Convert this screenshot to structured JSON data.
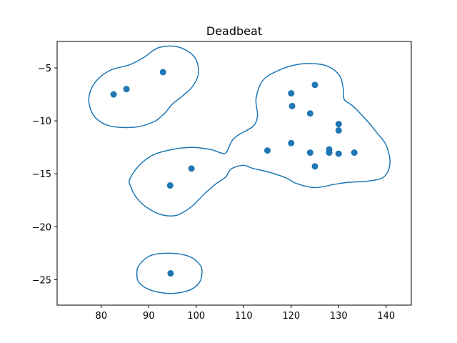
{
  "chart_data": {
    "type": "scatter",
    "title": "Deadbeat",
    "xlabel": "",
    "ylabel": "",
    "xlim": [
      70.7,
      145.3
    ],
    "ylim": [
      -27.4,
      -2.5
    ],
    "xticks": [
      80,
      90,
      100,
      110,
      120,
      130,
      140
    ],
    "yticks": [
      -5,
      -10,
      -15,
      -20,
      -25
    ],
    "xtick_labels": [
      "80",
      "90",
      "100",
      "110",
      "120",
      "130",
      "140"
    ],
    "ytick_labels": [
      "−5",
      "−10",
      "−15",
      "−20",
      "−25"
    ],
    "grid": false,
    "color": "#1f77b4",
    "points": [
      {
        "x": 82.6,
        "y": -7.5
      },
      {
        "x": 85.3,
        "y": -7.0
      },
      {
        "x": 93.0,
        "y": -5.4
      },
      {
        "x": 99.0,
        "y": -14.5
      },
      {
        "x": 94.5,
        "y": -16.1
      },
      {
        "x": 94.6,
        "y": -24.4
      },
      {
        "x": 115.0,
        "y": -12.8
      },
      {
        "x": 120.0,
        "y": -7.4
      },
      {
        "x": 120.2,
        "y": -8.6
      },
      {
        "x": 125.0,
        "y": -6.6
      },
      {
        "x": 124.0,
        "y": -9.3
      },
      {
        "x": 130.0,
        "y": -10.3
      },
      {
        "x": 130.0,
        "y": -10.9
      },
      {
        "x": 120.0,
        "y": -12.1
      },
      {
        "x": 124.0,
        "y": -13.0
      },
      {
        "x": 128.0,
        "y": -12.7
      },
      {
        "x": 128.0,
        "y": -13.0
      },
      {
        "x": 130.0,
        "y": -13.1
      },
      {
        "x": 133.3,
        "y": -13.0
      },
      {
        "x": 125.0,
        "y": -14.3
      }
    ],
    "contours": [
      {
        "points": [
          [
            77.5,
            -7.5
          ],
          [
            79,
            -6.2
          ],
          [
            82,
            -5.2
          ],
          [
            86,
            -4.7
          ],
          [
            89,
            -4.0
          ],
          [
            92,
            -3.1
          ],
          [
            96,
            -3.0
          ],
          [
            99.5,
            -3.9
          ],
          [
            100.5,
            -5.4
          ],
          [
            99.3,
            -6.7
          ],
          [
            97,
            -7.7
          ],
          [
            95,
            -8.4
          ],
          [
            93.3,
            -9.3
          ],
          [
            91,
            -10.1
          ],
          [
            87,
            -10.6
          ],
          [
            82,
            -10.5
          ],
          [
            79,
            -9.8
          ],
          [
            77.6,
            -8.7
          ]
        ]
      },
      {
        "points": [
          [
            86,
            -15.5
          ],
          [
            88,
            -14.2
          ],
          [
            91,
            -13.2
          ],
          [
            95,
            -12.7
          ],
          [
            99,
            -12.5
          ],
          [
            103,
            -12.7
          ],
          [
            105,
            -13.0
          ],
          [
            106.3,
            -13.0
          ],
          [
            107.5,
            -11.9
          ],
          [
            109,
            -11.3
          ],
          [
            112,
            -10.5
          ],
          [
            112.9,
            -9.5
          ],
          [
            112.6,
            -7.9
          ],
          [
            114,
            -6.2
          ],
          [
            117,
            -5.3
          ],
          [
            121,
            -4.7
          ],
          [
            125,
            -4.6
          ],
          [
            128,
            -4.9
          ],
          [
            130.3,
            -5.8
          ],
          [
            131,
            -7.1
          ],
          [
            131.2,
            -8.0
          ],
          [
            133,
            -8.6
          ],
          [
            136,
            -10.0
          ],
          [
            138,
            -11.1
          ],
          [
            140,
            -12.3
          ],
          [
            140.8,
            -14.0
          ],
          [
            139.5,
            -15.3
          ],
          [
            136,
            -15.7
          ],
          [
            132,
            -15.8
          ],
          [
            129,
            -16.0
          ],
          [
            125,
            -16.3
          ],
          [
            121,
            -15.9
          ],
          [
            119,
            -15.4
          ],
          [
            115,
            -14.8
          ],
          [
            112,
            -14.5
          ],
          [
            110,
            -14.2
          ],
          [
            108,
            -14.4
          ],
          [
            107,
            -14.7
          ],
          [
            106.2,
            -15.3
          ],
          [
            104,
            -16.0
          ],
          [
            101.5,
            -17.0
          ],
          [
            99,
            -18.1
          ],
          [
            96,
            -18.9
          ],
          [
            93,
            -18.9
          ],
          [
            90,
            -18.3
          ],
          [
            87.5,
            -17.3
          ],
          [
            86.2,
            -16.2
          ]
        ]
      },
      {
        "points": [
          [
            87.5,
            -24.4
          ],
          [
            88,
            -23.6
          ],
          [
            90.5,
            -22.7
          ],
          [
            94.6,
            -22.5
          ],
          [
            98.5,
            -22.8
          ],
          [
            100.8,
            -23.6
          ],
          [
            101.2,
            -24.4
          ],
          [
            100.6,
            -25.3
          ],
          [
            98.5,
            -26.0
          ],
          [
            94.6,
            -26.3
          ],
          [
            90.5,
            -26.0
          ],
          [
            88,
            -25.3
          ]
        ]
      }
    ]
  }
}
